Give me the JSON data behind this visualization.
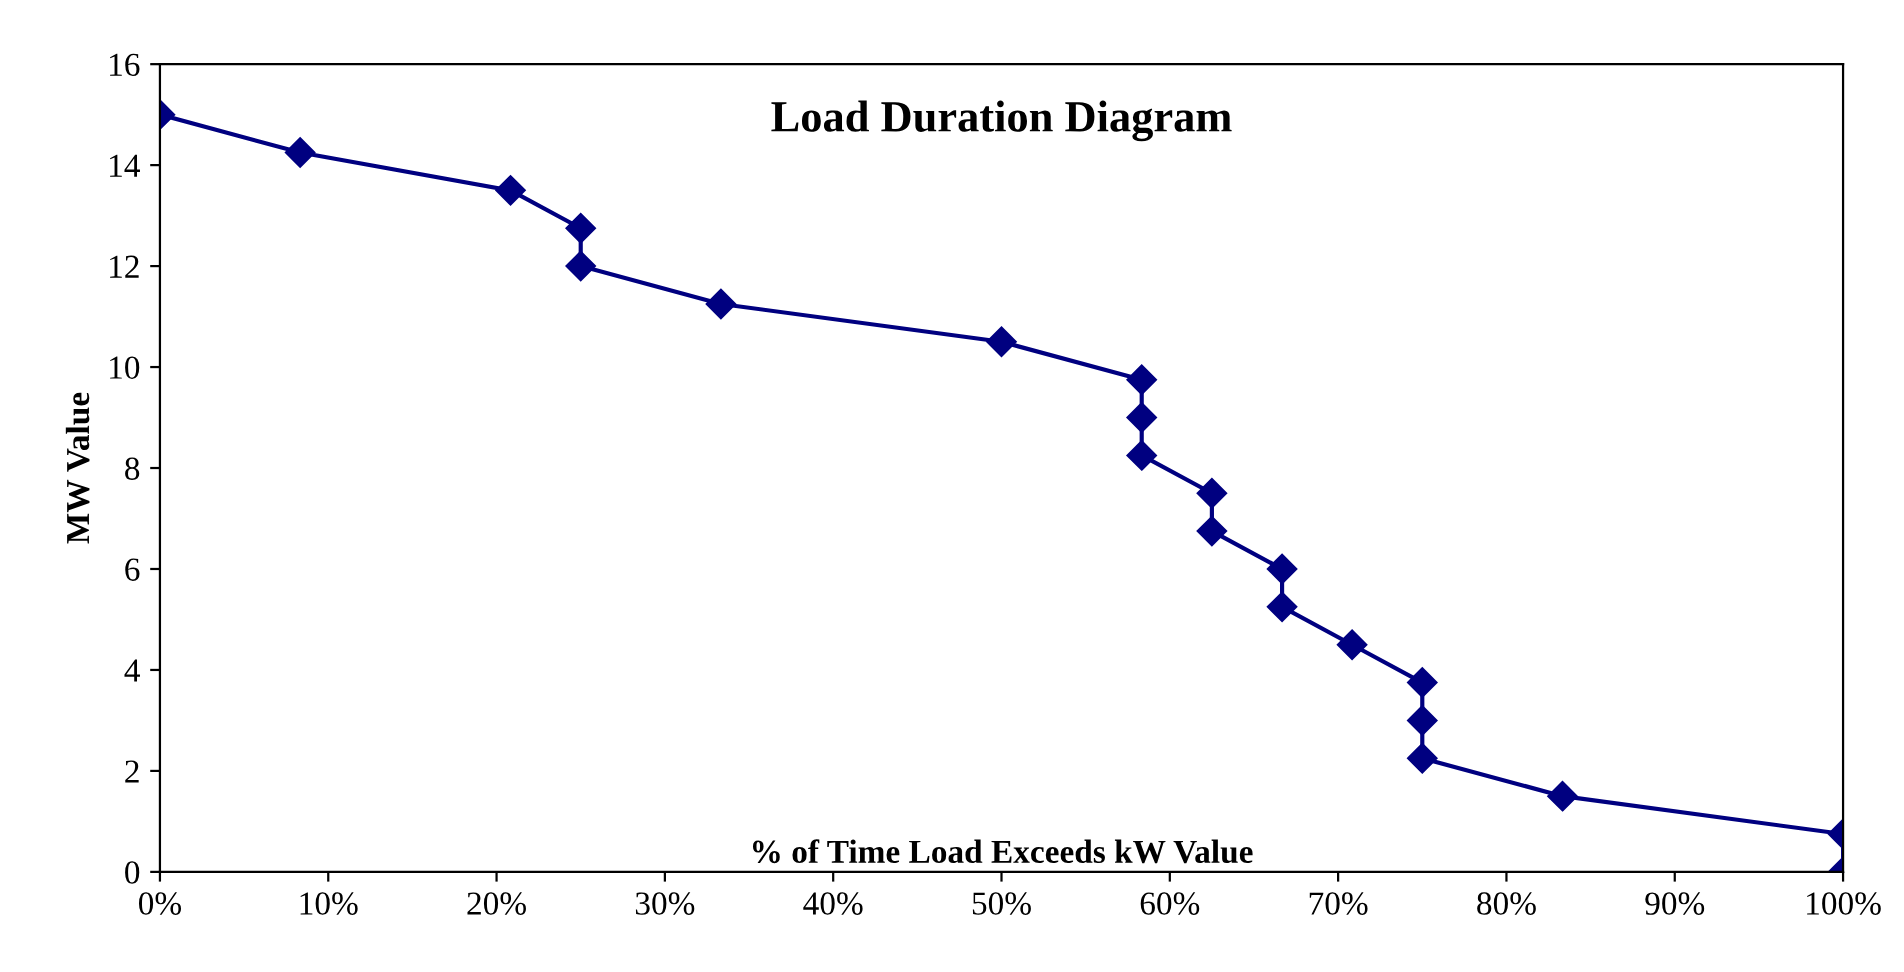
{
  "chart_data": {
    "type": "line",
    "title": "Load Duration Diagram",
    "xlabel": "% of Time Load Exceeds kW Value",
    "ylabel": "MW Value",
    "series": [
      {
        "color": "#000080",
        "x": [
          0,
          8.33,
          20.83,
          25,
          25,
          33.33,
          50,
          58.33,
          58.33,
          58.33,
          62.5,
          62.5,
          66.67,
          66.67,
          70.83,
          75,
          75,
          75,
          83.33,
          100,
          100
        ],
        "values": [
          15,
          14.25,
          13.5,
          12.75,
          12,
          11.25,
          10.5,
          9.75,
          9,
          8.25,
          7.5,
          6.75,
          6,
          5.25,
          4.5,
          3.75,
          3,
          2.25,
          1.5,
          0.75,
          0
        ]
      }
    ],
    "xlim": [
      0,
      100
    ],
    "ylim": [
      0,
      16
    ],
    "xticks": [
      {
        "value": 0,
        "label": "0%"
      },
      {
        "value": 10,
        "label": "10%"
      },
      {
        "value": 20,
        "label": "20%"
      },
      {
        "value": 30,
        "label": "30%"
      },
      {
        "value": 40,
        "label": "40%"
      },
      {
        "value": 50,
        "label": "50%"
      },
      {
        "value": 60,
        "label": "60%"
      },
      {
        "value": 70,
        "label": "70%"
      },
      {
        "value": 80,
        "label": "80%"
      },
      {
        "value": 90,
        "label": "90%"
      },
      {
        "value": 100,
        "label": "100%"
      }
    ],
    "yticks": [
      0,
      2,
      4,
      6,
      8,
      10,
      12,
      14,
      16
    ],
    "marker": "diamond",
    "line_style": "solid",
    "grid": false
  }
}
